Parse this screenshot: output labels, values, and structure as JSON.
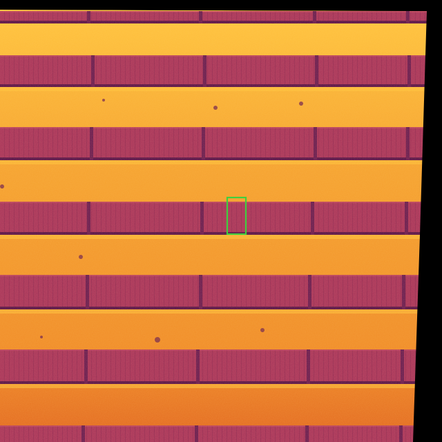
{
  "image": {
    "kind": "thermal aerial view of solar panel rows",
    "palette": {
      "background": "#000000",
      "ground_hot": "#f2922a",
      "ground_bright": "#ffc33c",
      "ground_edge": "#e2641e",
      "panel_main": "#a8305a",
      "panel_dark": "#6a1850",
      "panel_shadow": "#5a1048",
      "panel_highlight": "#c44a60",
      "spot": "#7a2848"
    },
    "detection_box": {
      "label": "",
      "color": "#3fcf3f"
    }
  }
}
